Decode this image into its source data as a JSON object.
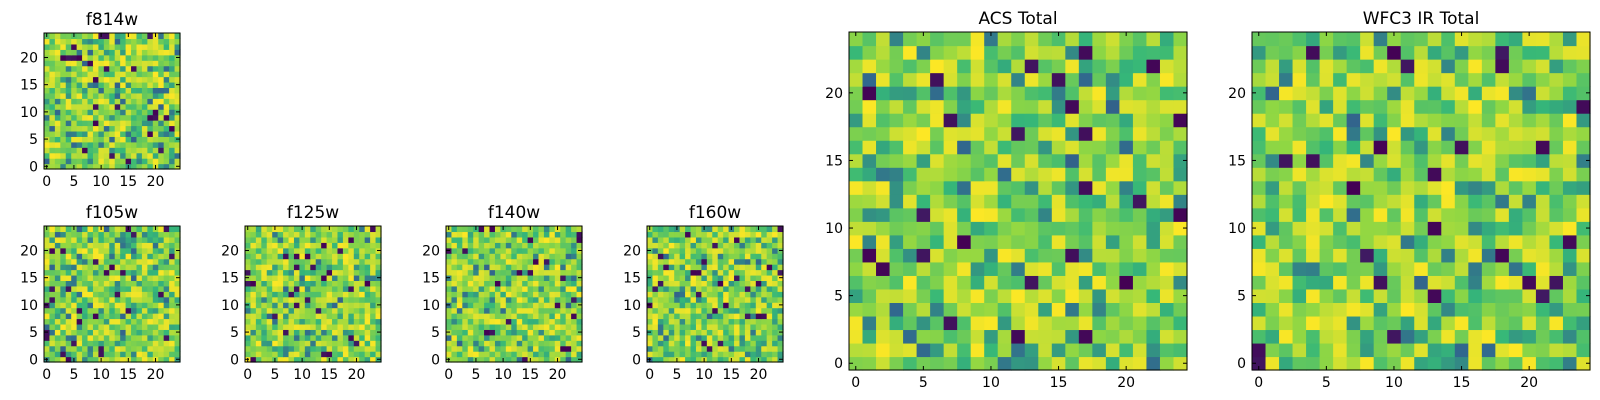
{
  "chart_data": [
    {
      "id": "f814w",
      "type": "heatmap",
      "title": "f814w",
      "grid_size": 25,
      "xlim": [
        0,
        24
      ],
      "ylim": [
        0,
        24
      ],
      "xticks": [
        0,
        5,
        10,
        15,
        20
      ],
      "yticks": [
        0,
        5,
        10,
        15,
        20
      ],
      "seed": 11,
      "texture": 0.02
    },
    {
      "id": "f105w",
      "type": "heatmap",
      "title": "f105w",
      "grid_size": 25,
      "xlim": [
        0,
        24
      ],
      "ylim": [
        0,
        24
      ],
      "xticks": [
        0,
        5,
        10,
        15,
        20
      ],
      "yticks": [
        0,
        5,
        10,
        15,
        20
      ],
      "seed": 23,
      "texture": 0.03
    },
    {
      "id": "f125w",
      "type": "heatmap",
      "title": "f125w",
      "grid_size": 25,
      "xlim": [
        0,
        24
      ],
      "ylim": [
        0,
        24
      ],
      "xticks": [
        0,
        5,
        10,
        15,
        20
      ],
      "yticks": [
        0,
        5,
        10,
        15,
        20
      ],
      "seed": 37,
      "texture": 0.03
    },
    {
      "id": "f140w",
      "type": "heatmap",
      "title": "f140w",
      "grid_size": 25,
      "xlim": [
        0,
        24
      ],
      "ylim": [
        0,
        24
      ],
      "xticks": [
        0,
        5,
        10,
        15,
        20
      ],
      "yticks": [
        0,
        5,
        10,
        15,
        20
      ],
      "seed": 41,
      "texture": 0.03
    },
    {
      "id": "f160w",
      "type": "heatmap",
      "title": "f160w",
      "grid_size": 25,
      "xlim": [
        0,
        24
      ],
      "ylim": [
        0,
        24
      ],
      "xticks": [
        0,
        5,
        10,
        15,
        20
      ],
      "yticks": [
        0,
        5,
        10,
        15,
        20
      ],
      "seed": 53,
      "texture": 0.03
    },
    {
      "id": "acs-total",
      "type": "heatmap",
      "title": "ACS Total",
      "grid_size": 25,
      "xlim": [
        0,
        24
      ],
      "ylim": [
        0,
        24
      ],
      "xticks": [
        0,
        5,
        10,
        15,
        20
      ],
      "yticks": [
        0,
        5,
        10,
        15,
        20
      ],
      "seed": 67,
      "texture": 0.02
    },
    {
      "id": "wfc3-ir-total",
      "type": "heatmap",
      "title": "WFC3 IR Total",
      "grid_size": 25,
      "xlim": [
        0,
        24
      ],
      "ylim": [
        0,
        24
      ],
      "xticks": [
        0,
        5,
        10,
        15,
        20
      ],
      "yticks": [
        0,
        5,
        10,
        15,
        20
      ],
      "seed": 79,
      "texture": 0.035
    }
  ],
  "colormap": [
    "#440154",
    "#31688e",
    "#35b779",
    "#90d743",
    "#fde725"
  ]
}
